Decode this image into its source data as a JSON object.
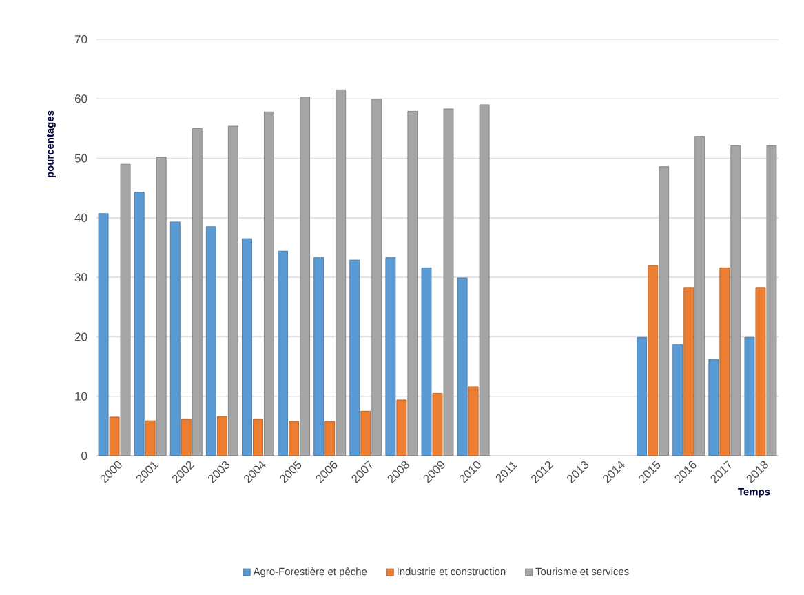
{
  "chart_data": {
    "type": "bar",
    "xlabel": "Temps",
    "ylabel": "pourcentages",
    "categories": [
      "2000",
      "2001",
      "2002",
      "2003",
      "2004",
      "2005",
      "2006",
      "2007",
      "2008",
      "2009",
      "2010",
      "2011",
      "2012",
      "2013",
      "2014",
      "2015",
      "2016",
      "2017",
      "2018"
    ],
    "series": [
      {
        "name": "Agro-Forestière et pêche",
        "color": "#5b9bd5",
        "values": [
          40.7,
          44.3,
          39.3,
          38.5,
          36.5,
          34.4,
          33.3,
          32.9,
          33.3,
          31.6,
          29.9,
          null,
          null,
          null,
          null,
          19.9,
          18.7,
          16.2,
          19.9
        ]
      },
      {
        "name": "Industrie et construction",
        "color": "#ed7d31",
        "values": [
          6.5,
          5.9,
          6.1,
          6.6,
          6.1,
          5.8,
          5.8,
          7.5,
          9.4,
          10.5,
          11.6,
          null,
          null,
          null,
          null,
          32.0,
          28.3,
          31.6,
          28.3
        ]
      },
      {
        "name": "Tourisme et services",
        "color": "#a5a5a5",
        "values": [
          49.0,
          50.2,
          55.0,
          55.4,
          57.8,
          60.3,
          61.5,
          59.9,
          57.9,
          58.3,
          59.0,
          null,
          null,
          null,
          null,
          48.6,
          53.7,
          52.1,
          52.1
        ]
      }
    ],
    "ylim": [
      0,
      70
    ],
    "yticks": [
      0,
      10,
      20,
      30,
      40,
      50,
      60,
      70
    ],
    "grid": "y",
    "legend": "bottom"
  }
}
